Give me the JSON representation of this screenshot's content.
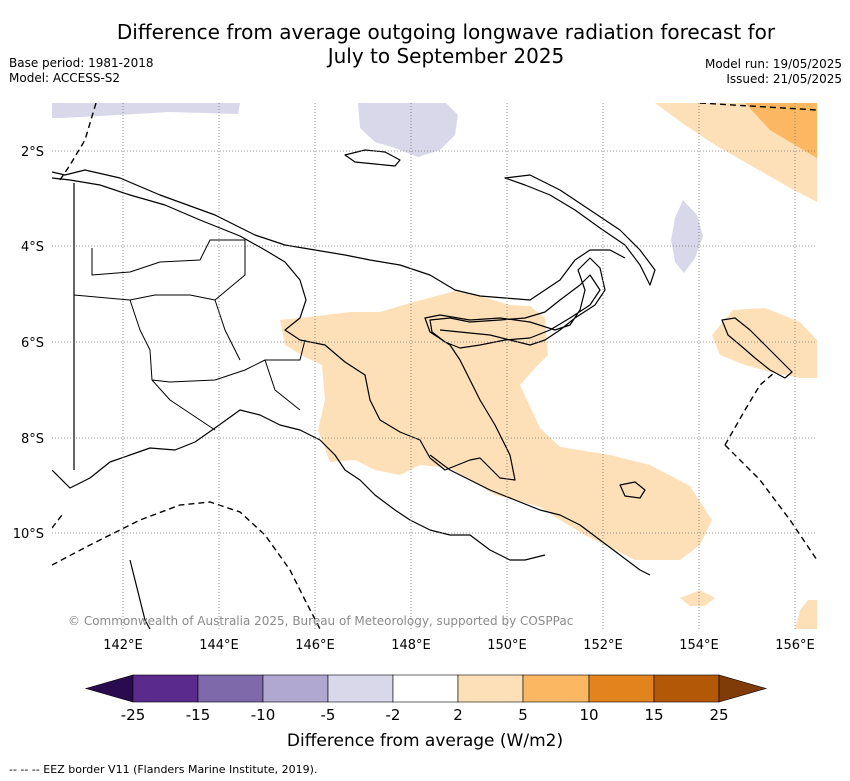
{
  "title": {
    "line1": "Difference from average outgoing longwave radiation forecast for",
    "line2": "July to September 2025"
  },
  "meta": {
    "base_period": "Base period: 1981-2018",
    "model": "Model: ACCESS-S2",
    "model_run": "Model run: 19/05/2025",
    "issued": "Issued: 21/05/2025"
  },
  "map": {
    "lon_range": [
      140.8,
      156.5
    ],
    "lat_range": [
      -12.0,
      -1.0
    ],
    "lon_ticks": [
      "142°E",
      "144°E",
      "146°E",
      "148°E",
      "150°E",
      "152°E",
      "154°E",
      "156°E"
    ],
    "lat_ticks": [
      "2°S",
      "4°S",
      "6°S",
      "8°S",
      "10°S"
    ],
    "gridlines": "dotted",
    "copyright": "© Commonwealth of Australia 2025, Bureau of Meteorology, supported by COSPPac"
  },
  "colorbar": {
    "ticks": [
      "-25",
      "-15",
      "-10",
      "-5",
      "-2",
      "2",
      "5",
      "10",
      "15",
      "25"
    ],
    "colors": [
      "#2a0b4f",
      "#5a2a8c",
      "#7e6aab",
      "#b1a8d2",
      "#d8d8ea",
      "#ffffff",
      "#fde0b8",
      "#fbb762",
      "#e2831d",
      "#b35806",
      "#7f3b08"
    ],
    "label": "Difference from average (W/m2)"
  },
  "footnote": "--  --  -- EEZ border V11 (Flanders Marine Institute, 2019)."
}
